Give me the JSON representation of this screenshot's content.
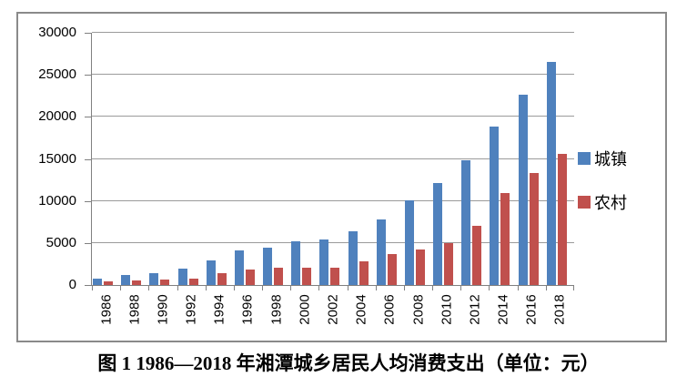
{
  "figure": {
    "caption": "图 1 1986—2018 年湘潭城乡居民人均消费支出（单位：元）"
  },
  "chart_data": {
    "type": "bar",
    "title": "",
    "categories": [
      "1986",
      "1988",
      "1990",
      "1992",
      "1994",
      "1996",
      "1998",
      "2000",
      "2002",
      "2004",
      "2006",
      "2008",
      "2010",
      "2012",
      "2014",
      "2016",
      "2018"
    ],
    "series": [
      {
        "name": "城镇",
        "color": "#4F81BD",
        "values": [
          800,
          1200,
          1400,
          1950,
          2950,
          4100,
          4400,
          5150,
          5450,
          6400,
          7850,
          10100,
          12100,
          14800,
          18900,
          22600,
          26500
        ]
      },
      {
        "name": "农村",
        "color": "#C0504D",
        "values": [
          400,
          550,
          650,
          800,
          1400,
          1850,
          2080,
          2050,
          2080,
          2850,
          3650,
          4250,
          5000,
          7050,
          10950,
          13300,
          15650
        ]
      }
    ],
    "ylim": [
      0,
      30000
    ],
    "yticks": [
      0,
      5000,
      10000,
      15000,
      20000,
      25000,
      30000
    ],
    "xlabel": "",
    "ylabel": "",
    "grid": true,
    "legend_position": "right"
  }
}
